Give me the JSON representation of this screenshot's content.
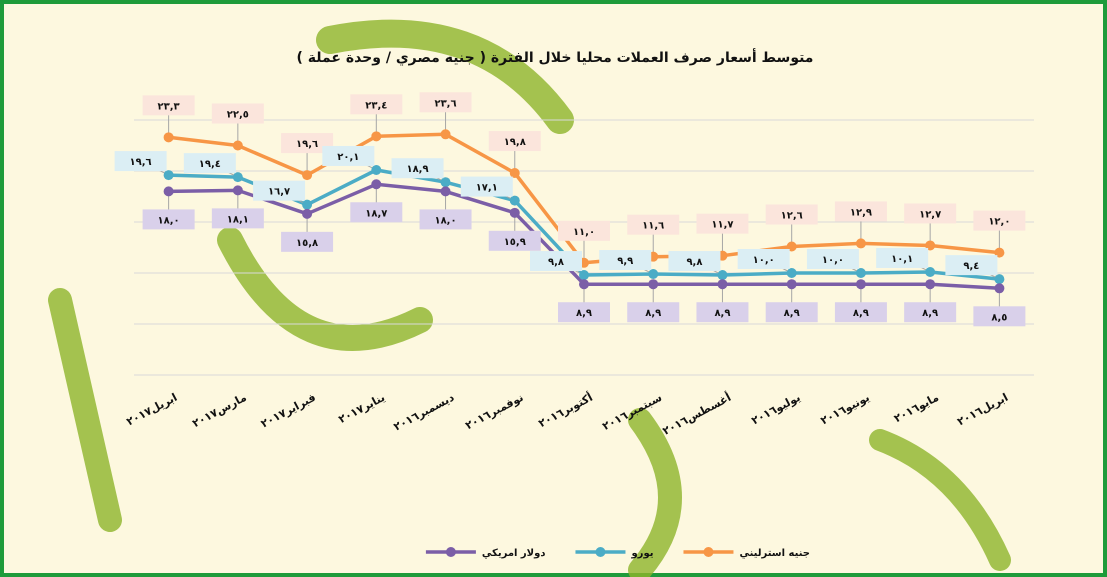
{
  "chart_data": {
    "type": "line",
    "title": "متوسط أسعار صرف العملات محليا خلال الفترة ( جنيه مصري / وحدة عملة )",
    "categories": [
      "ابريل٢٠١٧",
      "مارس٢٠١٧",
      "فبراير٢٠١٧",
      "يناير٢٠١٧",
      "ديسمبر٢٠١٦",
      "نوفمبر٢٠١٦",
      "أكتوبر٢٠١٦",
      "سبتمبر٢٠١٦",
      "أغسطس٢٠١٦",
      "يوليو٢٠١٦",
      "يونيو٢٠١٦",
      "مايو٢٠١٦",
      "ابريل٢٠١٦"
    ],
    "series": [
      {
        "name": "جنيه استرليني",
        "color": "#f79646",
        "values": [
          23.3,
          22.5,
          19.6,
          23.4,
          23.6,
          19.8,
          11.0,
          11.6,
          11.7,
          12.6,
          12.9,
          12.7,
          12.0
        ],
        "value_labels": [
          "٢٣,٣",
          "٢٢,٥",
          "١٩,٦",
          "٢٣,٤",
          "٢٣,٦",
          "١٩,٨",
          "١١,٠",
          "١١,٦",
          "١١,٧",
          "١٢,٦",
          "١٢,٩",
          "١٢,٧",
          "١٢,٠"
        ],
        "label_bg": "#fbe5dc"
      },
      {
        "name": "يورو",
        "color": "#4bacc6",
        "values": [
          19.6,
          19.4,
          16.7,
          20.1,
          18.9,
          17.1,
          9.8,
          9.9,
          9.8,
          10.0,
          10.0,
          10.1,
          9.4
        ],
        "value_labels": [
          "١٩,٦",
          "١٩,٤",
          "١٦,٧",
          "٢٠,١",
          "١٨,٩",
          "١٧,١",
          "٩,٨",
          "٩,٩",
          "٩,٨",
          "١٠,٠",
          "١٠,٠",
          "١٠,١",
          "٩,٤"
        ],
        "label_bg": "#dbeef4"
      },
      {
        "name": "دولار امريكي",
        "color": "#7b5ea7",
        "values": [
          18.0,
          18.1,
          15.8,
          18.7,
          18.0,
          15.9,
          8.9,
          8.9,
          8.9,
          8.9,
          8.9,
          8.9,
          8.5
        ],
        "value_labels": [
          "١٨,٠",
          "١٨,١",
          "١٥,٨",
          "١٨,٧",
          "١٨,٠",
          "١٥,٩",
          "٨,٩",
          "٨,٩",
          "٨,٩",
          "٨,٩",
          "٨,٩",
          "٨,٩",
          "٨,٥"
        ],
        "label_bg": "#d9d0ea"
      }
    ],
    "ylim": [
      0,
      25
    ],
    "yticks": [
      0,
      5,
      10,
      15,
      20,
      25
    ],
    "grid": true
  }
}
